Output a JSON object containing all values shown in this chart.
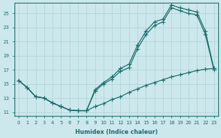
{
  "xlabel": "Humidex (Indice chaleur)",
  "bg_color": "#cce8ec",
  "line_color": "#1a6b6b",
  "grid_color": "#b0d4d8",
  "xticks": [
    0,
    1,
    2,
    3,
    4,
    5,
    6,
    7,
    8,
    9,
    10,
    11,
    12,
    13,
    14,
    15,
    16,
    17,
    18,
    19,
    20,
    21,
    22,
    23
  ],
  "yticks": [
    11,
    13,
    15,
    17,
    19,
    21,
    23,
    25
  ],
  "xlim": [
    -0.5,
    23.5
  ],
  "ylim": [
    10.5,
    26.5
  ],
  "line1_x": [
    0,
    1,
    2,
    3,
    4,
    5,
    6,
    7,
    8,
    9,
    10,
    11,
    12,
    13,
    14,
    15,
    16,
    17,
    18,
    19,
    20,
    21,
    22,
    23
  ],
  "line1_y": [
    15.5,
    14.5,
    13.2,
    13.0,
    12.3,
    11.8,
    11.3,
    11.2,
    11.2,
    14.2,
    15.2,
    16.0,
    17.2,
    17.8,
    20.5,
    22.5,
    23.8,
    24.2,
    26.2,
    25.8,
    25.5,
    25.2,
    22.5,
    17.2
  ],
  "line2_x": [
    0,
    1,
    2,
    3,
    4,
    5,
    6,
    7,
    8,
    9,
    10,
    11,
    12,
    13,
    14,
    15,
    16,
    17,
    18,
    19,
    20,
    21,
    22,
    23
  ],
  "line2_y": [
    15.5,
    14.5,
    13.2,
    13.0,
    12.3,
    11.8,
    11.3,
    11.2,
    11.2,
    14.0,
    15.0,
    15.7,
    16.8,
    17.3,
    20.0,
    22.0,
    23.3,
    23.8,
    25.8,
    25.4,
    25.0,
    24.8,
    22.0,
    17.0
  ],
  "line3_x": [
    0,
    1,
    2,
    3,
    4,
    5,
    6,
    7,
    8,
    9,
    10,
    11,
    12,
    13,
    14,
    15,
    16,
    17,
    18,
    19,
    20,
    21,
    22,
    23
  ],
  "line3_y": [
    15.5,
    14.5,
    13.2,
    13.0,
    12.3,
    11.8,
    11.3,
    11.2,
    11.2,
    11.8,
    12.2,
    12.8,
    13.2,
    13.8,
    14.3,
    14.8,
    15.2,
    15.6,
    16.0,
    16.3,
    16.6,
    16.9,
    17.1,
    17.2
  ]
}
